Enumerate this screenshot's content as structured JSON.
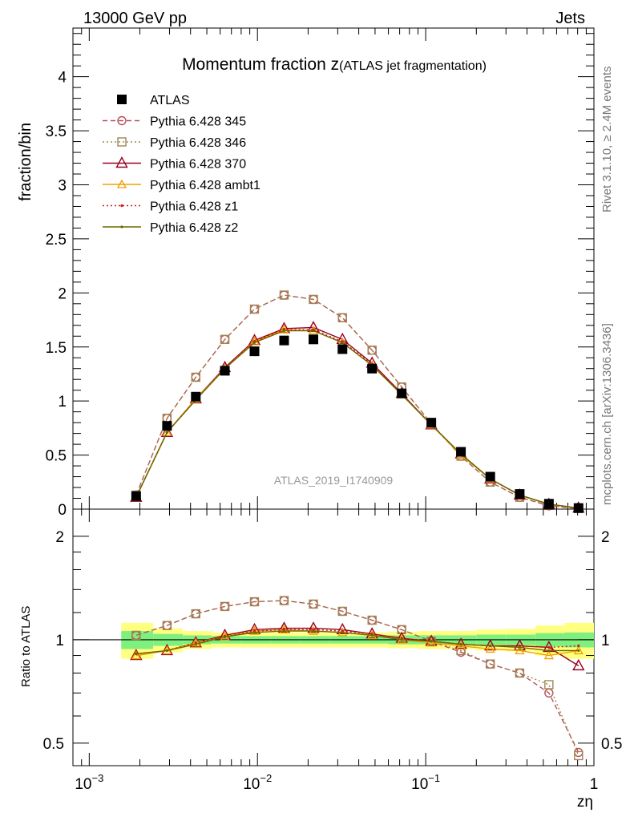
{
  "header": {
    "left_label": "13000 GeV pp",
    "right_label": "Jets",
    "side_label_top": "Rivet 3.1.10, ≥ 2.4M events",
    "side_label_bottom": "mcplots.cern.ch [arXiv:1306.3436]",
    "watermark": "ATLAS_2019_I1740909"
  },
  "chart_data": [
    {
      "type": "line",
      "panel": "main",
      "title": "Momentum fraction z",
      "title_suffix": "(ATLAS jet fragmentation)",
      "ylabel": "fraction/bin",
      "x_scale": "log",
      "xlim": [
        0.0008,
        1.0
      ],
      "ylim": [
        0,
        4.45
      ],
      "y_ticks": [
        {
          "v": 0,
          "label": "0"
        },
        {
          "v": 0.5,
          "label": "0.5"
        },
        {
          "v": 1,
          "label": "1"
        },
        {
          "v": 1.5,
          "label": "1.5"
        },
        {
          "v": 2,
          "label": "2"
        },
        {
          "v": 2.5,
          "label": "2.5"
        },
        {
          "v": 3,
          "label": "3"
        },
        {
          "v": 3.5,
          "label": "3.5"
        },
        {
          "v": 4,
          "label": "4"
        }
      ],
      "legend_position": "top-left",
      "x": [
        0.0019,
        0.0029,
        0.0043,
        0.0064,
        0.0096,
        0.0144,
        0.0215,
        0.032,
        0.048,
        0.072,
        0.108,
        0.162,
        0.242,
        0.362,
        0.54,
        0.81
      ],
      "series": [
        {
          "name": "ATLAS",
          "color": "#000000",
          "values": [
            0.12,
            0.77,
            1.04,
            1.28,
            1.46,
            1.56,
            1.57,
            1.48,
            1.3,
            1.07,
            0.8,
            0.53,
            0.3,
            0.14,
            0.05,
            0.01
          ]
        },
        {
          "name": "Pythia 6.428 345",
          "color": "#b5505a",
          "values": [
            0.13,
            0.84,
            1.22,
            1.57,
            1.85,
            1.98,
            1.94,
            1.77,
            1.47,
            1.13,
            0.79,
            0.49,
            0.25,
            0.11,
            0.03,
            0.005
          ]
        },
        {
          "name": "Pythia 6.428 346",
          "color": "#a08550",
          "values": [
            0.13,
            0.84,
            1.22,
            1.57,
            1.85,
            1.98,
            1.94,
            1.77,
            1.47,
            1.13,
            0.79,
            0.49,
            0.25,
            0.11,
            0.035,
            0.005
          ]
        },
        {
          "name": "Pythia 6.428 370",
          "color": "#990022",
          "values": [
            0.11,
            0.71,
            1.02,
            1.31,
            1.56,
            1.67,
            1.68,
            1.57,
            1.35,
            1.07,
            0.78,
            0.51,
            0.28,
            0.13,
            0.045,
            0.01
          ]
        },
        {
          "name": "Pythia 6.428 ambt1",
          "color": "#f0a000",
          "values": [
            0.11,
            0.71,
            1.02,
            1.3,
            1.55,
            1.66,
            1.65,
            1.54,
            1.33,
            1.06,
            0.78,
            0.5,
            0.28,
            0.13,
            0.045,
            0.01
          ]
        },
        {
          "name": "Pythia 6.428 z1",
          "color": "#cc1a1a",
          "values": [
            0.11,
            0.71,
            1.01,
            1.3,
            1.55,
            1.66,
            1.66,
            1.55,
            1.34,
            1.06,
            0.78,
            0.51,
            0.28,
            0.13,
            0.046,
            0.01
          ]
        },
        {
          "name": "Pythia 6.428 z2",
          "color": "#6a6a00",
          "values": [
            0.11,
            0.71,
            1.01,
            1.3,
            1.54,
            1.65,
            1.65,
            1.54,
            1.33,
            1.06,
            0.78,
            0.51,
            0.28,
            0.13,
            0.046,
            0.01
          ]
        }
      ]
    },
    {
      "type": "line",
      "panel": "ratio",
      "ylabel": "Ratio to ATLAS",
      "xlabel": "zη",
      "x_scale": "log",
      "y_scale": "log",
      "xlim": [
        0.0008,
        1.0
      ],
      "ylim": [
        0.43,
        2.4
      ],
      "x_ticks": [
        {
          "v": 0.001,
          "base": "10",
          "exp": "−3"
        },
        {
          "v": 0.01,
          "base": "10",
          "exp": "−2"
        },
        {
          "v": 0.1,
          "base": "10",
          "exp": "−1"
        },
        {
          "v": 1,
          "base": "1",
          "exp": ""
        }
      ],
      "y_ticks": [
        {
          "v": 0.5,
          "label": "0.5"
        },
        {
          "v": 1,
          "label": "1"
        },
        {
          "v": 2,
          "label": "2"
        }
      ],
      "reference_line": 1,
      "bands": {
        "edges": [
          0.00155,
          0.0024,
          0.0036,
          0.0053,
          0.008,
          0.012,
          0.018,
          0.027,
          0.04,
          0.06,
          0.09,
          0.135,
          0.2,
          0.3,
          0.45,
          0.67,
          1.0
        ],
        "inner_half_width": [
          0.06,
          0.04,
          0.03,
          0.025,
          0.025,
          0.025,
          0.025,
          0.025,
          0.025,
          0.03,
          0.03,
          0.03,
          0.035,
          0.035,
          0.045,
          0.05
        ],
        "outer_half_width": [
          0.12,
          0.08,
          0.06,
          0.05,
          0.05,
          0.05,
          0.05,
          0.05,
          0.05,
          0.055,
          0.06,
          0.06,
          0.07,
          0.075,
          0.1,
          0.12
        ]
      },
      "series": [
        {
          "name": "Pythia 6.428 345",
          "values": [
            1.03,
            1.1,
            1.19,
            1.25,
            1.29,
            1.3,
            1.27,
            1.21,
            1.14,
            1.07,
            0.99,
            0.92,
            0.85,
            0.8,
            0.7,
            0.47
          ]
        },
        {
          "name": "Pythia 6.428 346",
          "values": [
            1.03,
            1.1,
            1.19,
            1.25,
            1.29,
            1.3,
            1.27,
            1.21,
            1.14,
            1.07,
            0.99,
            0.93,
            0.85,
            0.8,
            0.74,
            0.46
          ]
        },
        {
          "name": "Pythia 6.428 370",
          "values": [
            0.9,
            0.93,
            0.98,
            1.03,
            1.07,
            1.08,
            1.08,
            1.07,
            1.04,
            1.01,
            0.99,
            0.97,
            0.96,
            0.96,
            0.95,
            0.84
          ]
        },
        {
          "name": "Pythia 6.428 ambt1",
          "values": [
            0.9,
            0.93,
            0.98,
            1.02,
            1.06,
            1.07,
            1.06,
            1.05,
            1.03,
            1.0,
            0.98,
            0.96,
            0.94,
            0.93,
            0.9,
            0.93
          ]
        },
        {
          "name": "Pythia 6.428 z1",
          "values": [
            0.91,
            0.93,
            0.98,
            1.02,
            1.06,
            1.07,
            1.07,
            1.06,
            1.04,
            1.01,
            0.99,
            0.97,
            0.96,
            0.96,
            0.95,
            0.96
          ]
        },
        {
          "name": "Pythia 6.428 z2",
          "values": [
            0.91,
            0.93,
            0.97,
            1.02,
            1.05,
            1.06,
            1.06,
            1.05,
            1.03,
            1.0,
            0.99,
            0.97,
            0.96,
            0.95,
            0.93,
            0.93
          ]
        }
      ]
    }
  ]
}
